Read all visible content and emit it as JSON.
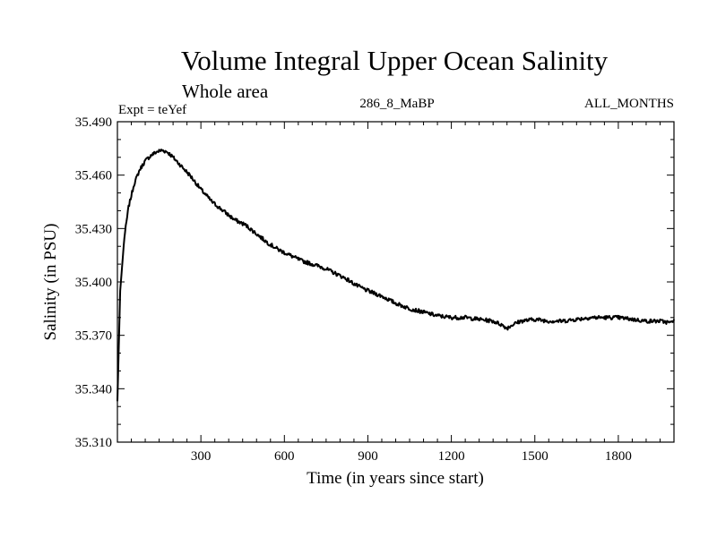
{
  "chart_data": {
    "type": "line",
    "title": "Volume Integral Upper Ocean Salinity",
    "subtitle": "Whole area",
    "expt_label": "Expt = teYef",
    "run_label": "286_8_MaBP",
    "months_label": "ALL_MONTHS",
    "xlabel": "Time (in years since start)",
    "ylabel": "Salinity (in PSU)",
    "xlim": [
      0,
      2000
    ],
    "ylim": [
      35.31,
      35.49
    ],
    "x_ticks": [
      300,
      600,
      900,
      1200,
      1500,
      1800
    ],
    "x_tick_labels": [
      "300",
      "600",
      "900",
      "1200",
      "1500",
      "1800"
    ],
    "y_ticks": [
      35.31,
      35.34,
      35.37,
      35.4,
      35.43,
      35.46,
      35.49
    ],
    "y_tick_labels": [
      "35.310",
      "35.340",
      "35.370",
      "35.400",
      "35.430",
      "35.460",
      "35.490"
    ],
    "series": [
      {
        "name": "Salinity",
        "color": "#000000",
        "x": [
          0,
          10,
          25,
          40,
          60,
          80,
          100,
          120,
          140,
          160,
          180,
          200,
          230,
          260,
          300,
          340,
          380,
          420,
          460,
          500,
          540,
          580,
          620,
          660,
          700,
          740,
          780,
          820,
          860,
          900,
          950,
          1000,
          1050,
          1100,
          1150,
          1200,
          1250,
          1300,
          1350,
          1380,
          1400,
          1420,
          1450,
          1500,
          1550,
          1600,
          1650,
          1700,
          1750,
          1800,
          1850,
          1900,
          1950,
          1990,
          2000
        ],
        "y": [
          35.333,
          35.395,
          35.425,
          35.442,
          35.455,
          35.463,
          35.468,
          35.471,
          35.473,
          35.474,
          35.473,
          35.47,
          35.465,
          35.46,
          35.452,
          35.445,
          35.44,
          35.435,
          35.432,
          35.427,
          35.422,
          35.418,
          35.415,
          35.412,
          35.41,
          35.408,
          35.405,
          35.402,
          35.398,
          35.395,
          35.392,
          35.388,
          35.385,
          35.383,
          35.381,
          35.38,
          35.38,
          35.379,
          35.378,
          35.376,
          35.374,
          35.376,
          35.378,
          35.379,
          35.378,
          35.378,
          35.379,
          35.38,
          35.38,
          35.38,
          35.379,
          35.378,
          35.378,
          35.377,
          35.379
        ]
      }
    ]
  }
}
